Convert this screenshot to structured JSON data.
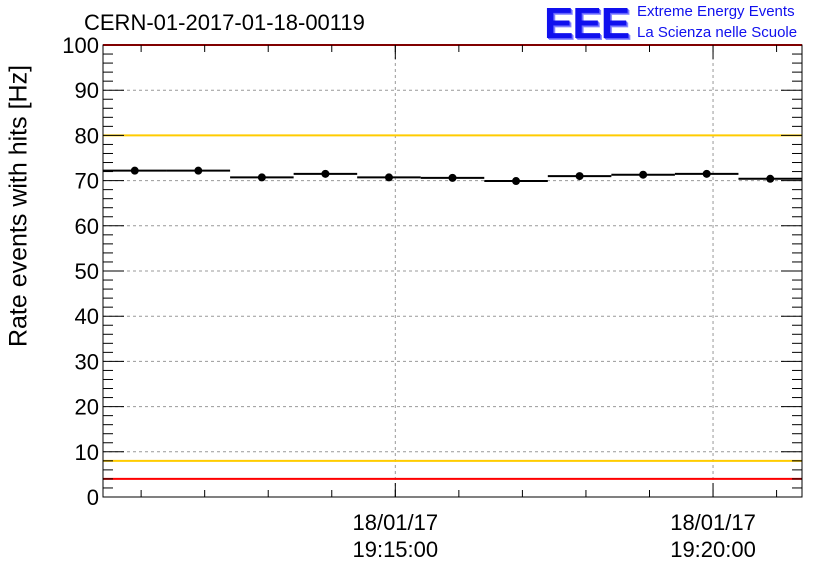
{
  "header": {
    "title": "CERN-01-2017-01-18-00119",
    "logo_text": "EEE",
    "logo_line1": "Extreme Energy Events",
    "logo_line2": "La Scienza nelle Scuole"
  },
  "chart_data": {
    "type": "scatter",
    "title": "CERN-01-2017-01-18-00119",
    "xlabel": "",
    "ylabel": "Rate events with hits [Hz]",
    "ylim": [
      0,
      100
    ],
    "xlim": [
      "18/01/17 19:10:24",
      "18/01/17 19:21:24"
    ],
    "y_ticks": [
      0,
      10,
      20,
      30,
      40,
      50,
      60,
      70,
      80,
      90,
      100
    ],
    "x_tick_labels": [
      {
        "date": "18/01/17",
        "time": "19:15:00",
        "x": "18/01/17 19:15:00"
      },
      {
        "date": "18/01/17",
        "time": "19:20:00",
        "x": "18/01/17 19:20:00"
      }
    ],
    "grid": true,
    "points": [
      {
        "x": "18/01/17 19:10:54",
        "y": 72.2
      },
      {
        "x": "18/01/17 19:11:54",
        "y": 72.2
      },
      {
        "x": "18/01/17 19:12:54",
        "y": 70.7
      },
      {
        "x": "18/01/17 19:13:54",
        "y": 71.5
      },
      {
        "x": "18/01/17 19:14:54",
        "y": 70.7
      },
      {
        "x": "18/01/17 19:15:54",
        "y": 70.6
      },
      {
        "x": "18/01/17 19:16:54",
        "y": 69.9
      },
      {
        "x": "18/01/17 19:17:54",
        "y": 71.0
      },
      {
        "x": "18/01/17 19:18:54",
        "y": 71.3
      },
      {
        "x": "18/01/17 19:19:54",
        "y": 71.5
      },
      {
        "x": "18/01/17 19:20:54",
        "y": 70.4
      }
    ],
    "bin_width_seconds": 60,
    "reference_lines": [
      {
        "y": 100,
        "color": "#ff0000"
      },
      {
        "y": 80,
        "color": "#ffcc00"
      },
      {
        "y": 8,
        "color": "#ffcc00"
      },
      {
        "y": 4,
        "color": "#ff0000"
      }
    ],
    "colors": {
      "points": "#000000",
      "grid": "#999999",
      "logo": "#1010ee"
    }
  }
}
